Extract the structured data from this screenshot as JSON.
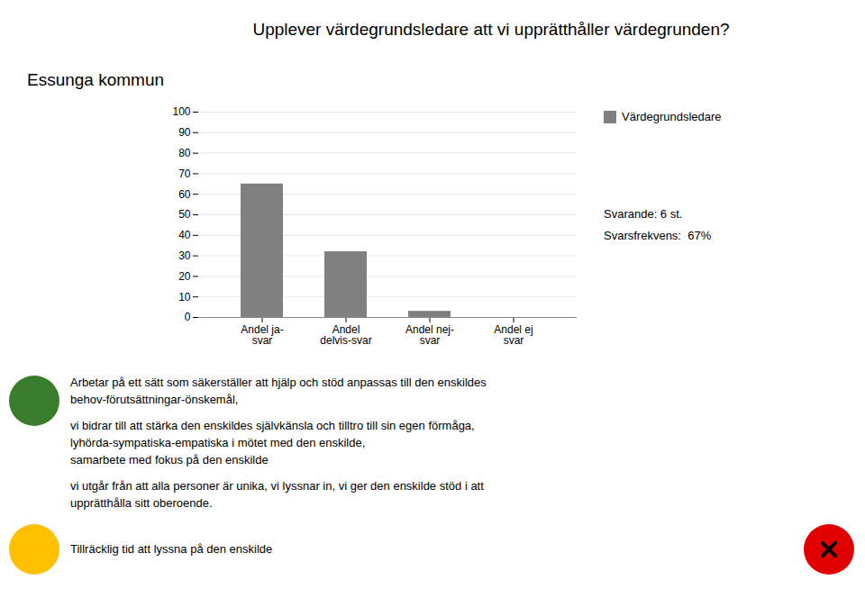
{
  "chart_data": {
    "type": "bar",
    "title": "Upplever värdegrundsledare att vi upprätthåller värdegrunden?",
    "subtitle": "Essunga kommun",
    "categories": [
      "Andel ja-\nsvar",
      "Andel\ndelvis-svar",
      "Andel nej-\nsvar",
      "Andel ej\nsvar"
    ],
    "series": [
      {
        "name": "Värdegrundsledare",
        "color": "#808080",
        "values": [
          65,
          32,
          3,
          0
        ]
      }
    ],
    "ylim": [
      0,
      100
    ],
    "yticks": [
      0,
      10,
      20,
      30,
      40,
      50,
      60,
      70,
      80,
      90,
      100
    ],
    "grid": true,
    "legend": "upper right",
    "annotations": [
      {
        "text": "Svarande: 6 st."
      },
      {
        "text": "Svarsfrekvens:  67%"
      },
      {
        "color": "#3a7d2c",
        "text": [
          [
            "Arbetar på ett sätt som säkerställer att hjälp och stöd anpassas till den enskildes",
            "behov-förutsättningar-önskemål,"
          ],
          [
            "vi bidrar till att stärka den enskildes självkänsla och tilltro till sin egen förmåga,",
            "lyhörda-sympatiska-empatiska i mötet med den enskilde,",
            "samarbete med fokus på den enskilde"
          ],
          [
            "vi utgår från att alla personer är unika, vi lyssnar in, vi ger den enskilde stöd i att",
            "upprätthålla sitt oberoende."
          ]
        ]
      },
      {
        "color": "#ffc000",
        "text": "Tillräcklig tid att lyssna på den enskilde"
      },
      {
        "color": "#e00000",
        "marker": "x"
      }
    ]
  }
}
